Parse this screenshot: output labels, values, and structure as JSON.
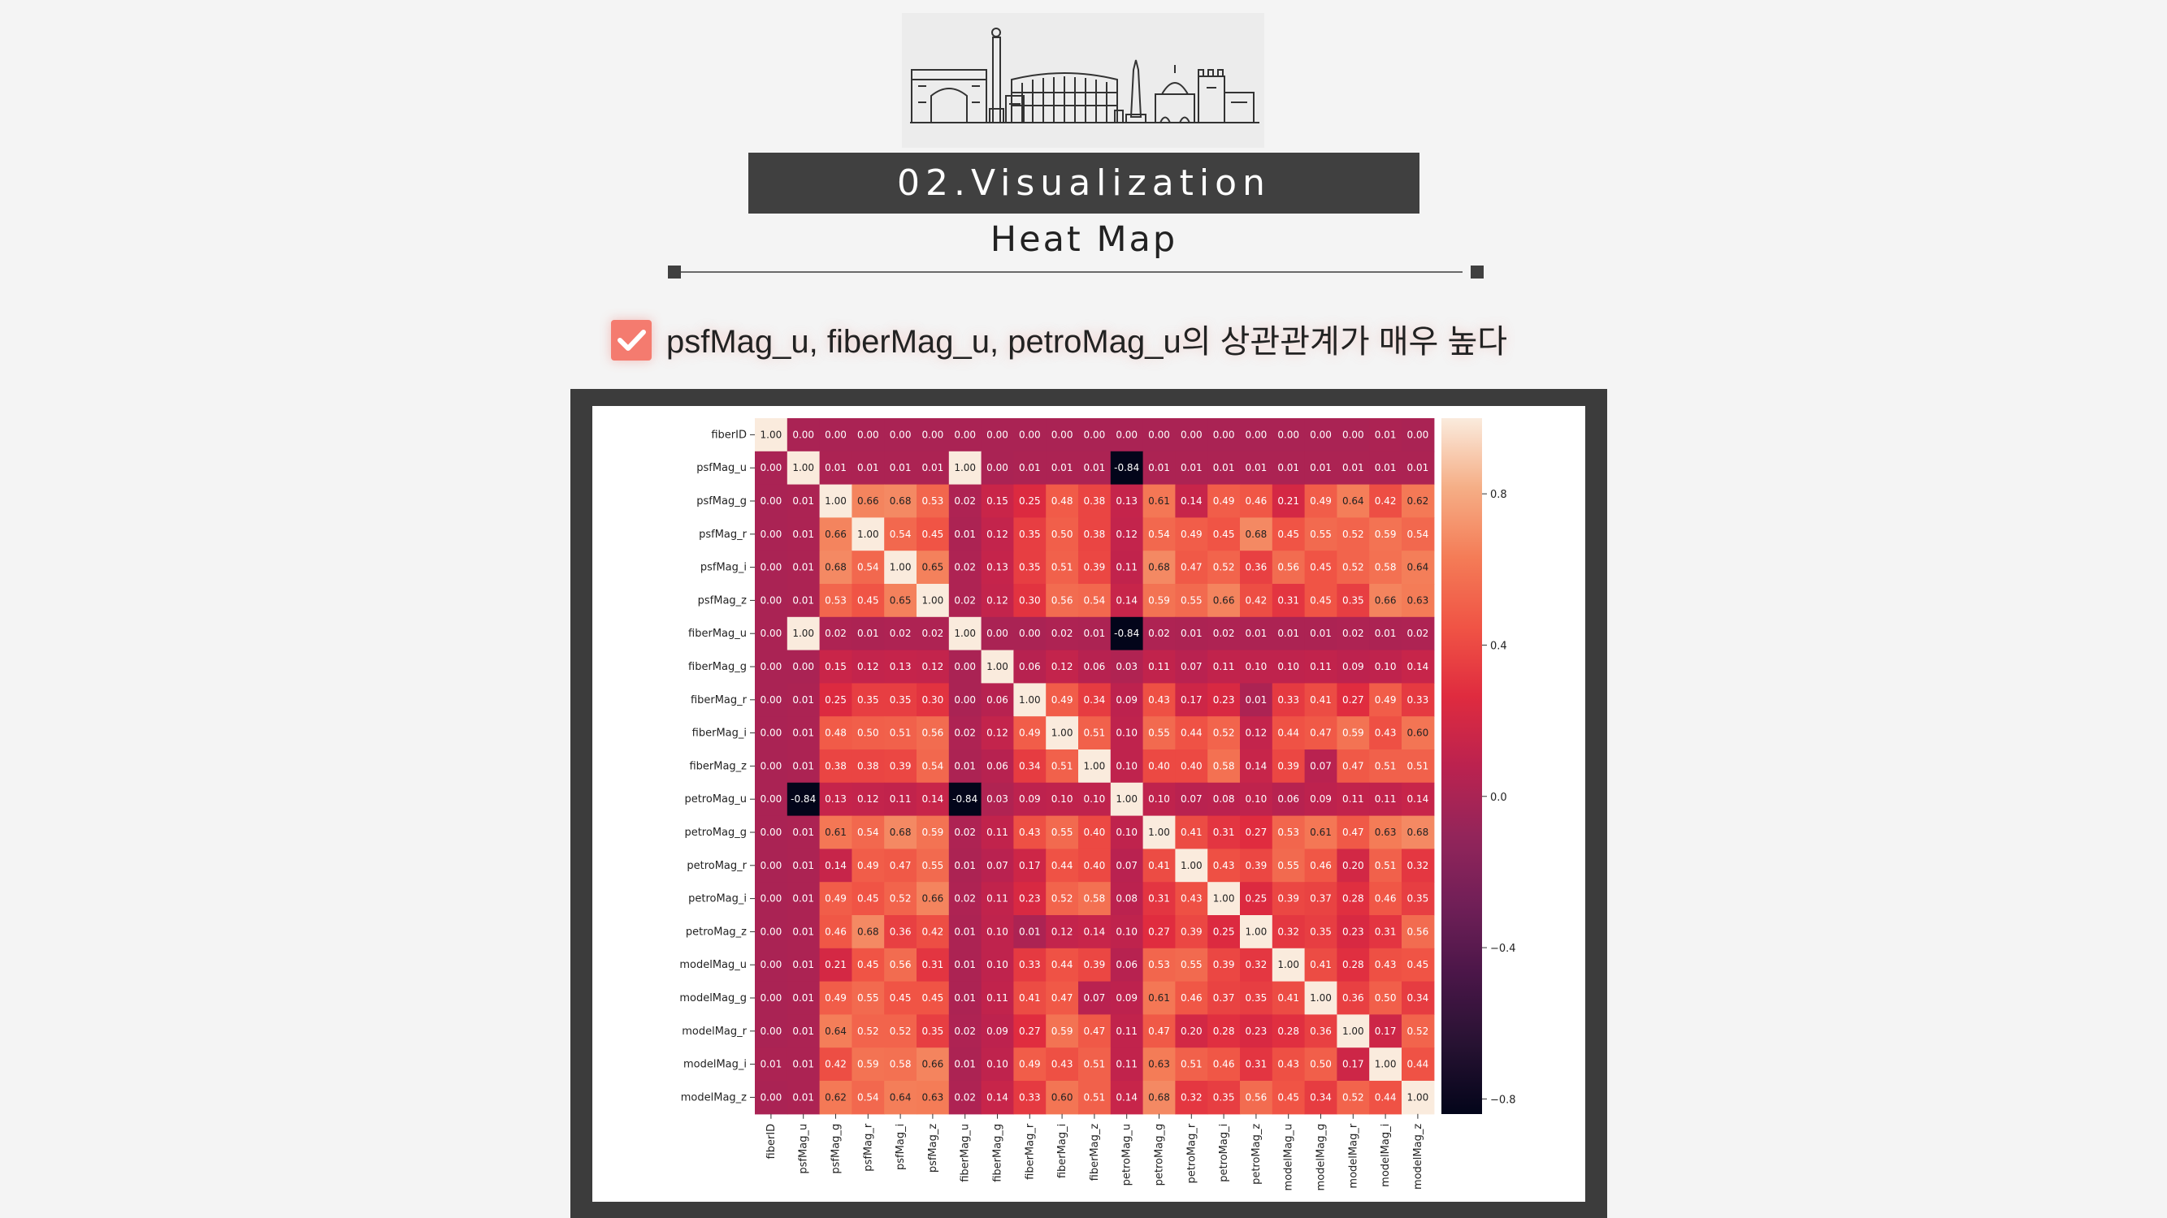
{
  "header": {
    "section_title": "02.Visualization",
    "subtitle": "Heat Map"
  },
  "finding": {
    "text": "psfMag_u, fiberMag_u, petroMag_u의 상관관계가 매우 높다",
    "icon": "checkbox-checked-icon",
    "accent_color": "#f47b6f"
  },
  "colors": {
    "title_bar": "#404040",
    "frame": "#3c3c3c",
    "background": "#f4f4f4"
  },
  "chart_data": {
    "type": "heatmap",
    "title": "",
    "labels": [
      "fiberID",
      "psfMag_u",
      "psfMag_g",
      "psfMag_r",
      "psfMag_i",
      "psfMag_z",
      "fiberMag_u",
      "fiberMag_g",
      "fiberMag_r",
      "fiberMag_i",
      "fiberMag_z",
      "petroMag_u",
      "petroMag_g",
      "petroMag_r",
      "petroMag_i",
      "petroMag_z",
      "modelMag_u",
      "modelMag_g",
      "modelMag_r",
      "modelMag_i",
      "modelMag_z"
    ],
    "values": [
      [
        1.0,
        0.0,
        0.0,
        0.0,
        0.0,
        0.0,
        0.0,
        0.0,
        0.0,
        0.0,
        0.0,
        -0.0,
        0.0,
        0.0,
        0.0,
        0.0,
        0.0,
        0.0,
        0.0,
        0.01,
        0.0
      ],
      [
        0.0,
        1.0,
        0.01,
        0.01,
        0.01,
        0.01,
        1.0,
        0.0,
        0.01,
        0.01,
        0.01,
        -0.84,
        0.01,
        0.01,
        0.01,
        0.01,
        0.01,
        0.01,
        0.01,
        0.01,
        0.01
      ],
      [
        0.0,
        0.01,
        1.0,
        0.66,
        0.68,
        0.53,
        0.02,
        0.15,
        0.25,
        0.48,
        0.38,
        0.13,
        0.61,
        0.14,
        0.49,
        0.46,
        0.21,
        0.49,
        0.64,
        0.42,
        0.62
      ],
      [
        0.0,
        0.01,
        0.66,
        1.0,
        0.54,
        0.45,
        0.01,
        0.12,
        0.35,
        0.5,
        0.38,
        0.12,
        0.54,
        0.49,
        0.45,
        0.68,
        0.45,
        0.55,
        0.52,
        0.59,
        0.54
      ],
      [
        0.0,
        0.01,
        0.68,
        0.54,
        1.0,
        0.65,
        0.02,
        0.13,
        0.35,
        0.51,
        0.39,
        0.11,
        0.68,
        0.47,
        0.52,
        0.36,
        0.56,
        0.45,
        0.52,
        0.58,
        0.64
      ],
      [
        0.0,
        0.01,
        0.53,
        0.45,
        0.65,
        1.0,
        0.02,
        0.12,
        0.3,
        0.56,
        0.54,
        0.14,
        0.59,
        0.55,
        0.66,
        0.42,
        0.31,
        0.45,
        0.35,
        0.66,
        0.63
      ],
      [
        0.0,
        1.0,
        0.02,
        0.01,
        0.02,
        0.02,
        1.0,
        0.0,
        0.0,
        0.02,
        0.01,
        -0.84,
        0.02,
        0.01,
        0.02,
        0.01,
        0.01,
        0.01,
        0.02,
        0.01,
        0.02
      ],
      [
        0.0,
        0.0,
        0.15,
        0.12,
        0.13,
        0.12,
        0.0,
        1.0,
        0.06,
        0.12,
        0.06,
        0.03,
        0.11,
        0.07,
        0.11,
        0.1,
        0.1,
        0.11,
        0.09,
        0.1,
        0.14
      ],
      [
        0.0,
        0.01,
        0.25,
        0.35,
        0.35,
        0.3,
        0.0,
        0.06,
        1.0,
        0.49,
        0.34,
        0.09,
        0.43,
        0.17,
        0.23,
        0.01,
        0.33,
        0.41,
        0.27,
        0.49,
        0.33
      ],
      [
        0.0,
        0.01,
        0.48,
        0.5,
        0.51,
        0.56,
        0.02,
        0.12,
        0.49,
        1.0,
        0.51,
        0.1,
        0.55,
        0.44,
        0.52,
        0.12,
        0.44,
        0.47,
        0.59,
        0.43,
        0.6
      ],
      [
        0.0,
        0.01,
        0.38,
        0.38,
        0.39,
        0.54,
        0.01,
        0.06,
        0.34,
        0.51,
        1.0,
        0.1,
        0.4,
        0.4,
        0.58,
        0.14,
        0.39,
        0.07,
        0.47,
        0.51,
        0.51
      ],
      [
        -0.0,
        -0.84,
        0.13,
        0.12,
        0.11,
        0.14,
        -0.84,
        0.03,
        0.09,
        0.1,
        0.1,
        1.0,
        0.1,
        0.07,
        0.08,
        0.1,
        0.06,
        0.09,
        0.11,
        0.11,
        0.14
      ],
      [
        0.0,
        0.01,
        0.61,
        0.54,
        0.68,
        0.59,
        0.02,
        0.11,
        0.43,
        0.55,
        0.4,
        0.1,
        1.0,
        0.41,
        0.31,
        0.27,
        0.53,
        0.61,
        0.47,
        0.63,
        0.68
      ],
      [
        0.0,
        0.01,
        0.14,
        0.49,
        0.47,
        0.55,
        0.01,
        0.07,
        0.17,
        0.44,
        0.4,
        0.07,
        0.41,
        1.0,
        0.43,
        0.39,
        0.55,
        0.46,
        0.2,
        0.51,
        0.32
      ],
      [
        0.0,
        0.01,
        0.49,
        0.45,
        0.52,
        0.66,
        0.02,
        0.11,
        0.23,
        0.52,
        0.58,
        0.08,
        0.31,
        0.43,
        1.0,
        0.25,
        0.39,
        0.37,
        0.28,
        0.46,
        0.35
      ],
      [
        0.0,
        0.01,
        0.46,
        0.68,
        0.36,
        0.42,
        0.01,
        0.1,
        0.01,
        0.12,
        0.14,
        0.1,
        0.27,
        0.39,
        0.25,
        1.0,
        0.32,
        0.35,
        0.23,
        0.31,
        0.56
      ],
      [
        0.0,
        0.01,
        0.21,
        0.45,
        0.56,
        0.31,
        0.01,
        0.1,
        0.33,
        0.44,
        0.39,
        0.06,
        0.53,
        0.55,
        0.39,
        0.32,
        1.0,
        0.41,
        0.28,
        0.43,
        0.45
      ],
      [
        0.0,
        0.01,
        0.49,
        0.55,
        0.45,
        0.45,
        0.01,
        0.11,
        0.41,
        0.47,
        0.07,
        0.09,
        0.61,
        0.46,
        0.37,
        0.35,
        0.41,
        1.0,
        0.36,
        0.5,
        0.34
      ],
      [
        0.0,
        0.01,
        0.64,
        0.52,
        0.52,
        0.35,
        0.02,
        0.09,
        0.27,
        0.59,
        0.47,
        0.11,
        0.47,
        0.2,
        0.28,
        0.23,
        0.28,
        0.36,
        1.0,
        0.17,
        0.52
      ],
      [
        0.01,
        0.01,
        0.42,
        0.59,
        0.58,
        0.66,
        0.01,
        0.1,
        0.49,
        0.43,
        0.51,
        0.11,
        0.63,
        0.51,
        0.46,
        0.31,
        0.43,
        0.5,
        0.17,
        1.0,
        0.44
      ],
      [
        0.0,
        0.01,
        0.62,
        0.54,
        0.64,
        0.63,
        0.02,
        0.14,
        0.33,
        0.6,
        0.51,
        0.14,
        0.68,
        0.32,
        0.35,
        0.56,
        0.45,
        0.34,
        0.52,
        0.44,
        1.0
      ]
    ],
    "colorbar": {
      "range": [
        -0.84,
        1.0
      ],
      "ticks": [
        0.8,
        0.4,
        0.0,
        -0.4,
        -0.8
      ],
      "tick_labels": [
        "0.8",
        "0.4",
        "0.0",
        "−0.4",
        "−0.8"
      ]
    },
    "colormap": "rocket",
    "annotated": true
  }
}
